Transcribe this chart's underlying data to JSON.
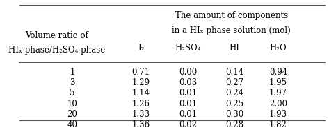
{
  "col_header_row1": [
    "",
    "The amount of components"
  ],
  "col_header_row2": [
    "Volume ratio of\nHIₓ phase/H₂SO₄ phase",
    "in a HIₓ phase solution (mol)"
  ],
  "sub_headers": [
    "I₂",
    "H₂SO₄",
    "HI",
    "H₂O"
  ],
  "row_labels": [
    "1",
    "3",
    "5",
    "10",
    "20",
    "40"
  ],
  "data": [
    [
      0.71,
      0.0,
      0.14,
      0.94
    ],
    [
      1.29,
      0.03,
      0.27,
      1.95
    ],
    [
      1.14,
      0.01,
      0.24,
      1.97
    ],
    [
      1.26,
      0.01,
      0.25,
      2.0
    ],
    [
      1.33,
      0.01,
      0.3,
      1.93
    ],
    [
      1.36,
      0.02,
      0.28,
      1.82
    ]
  ],
  "bg_color": "#ffffff",
  "text_color": "#000000",
  "font_size": 8.5,
  "header_font_size": 8.5
}
